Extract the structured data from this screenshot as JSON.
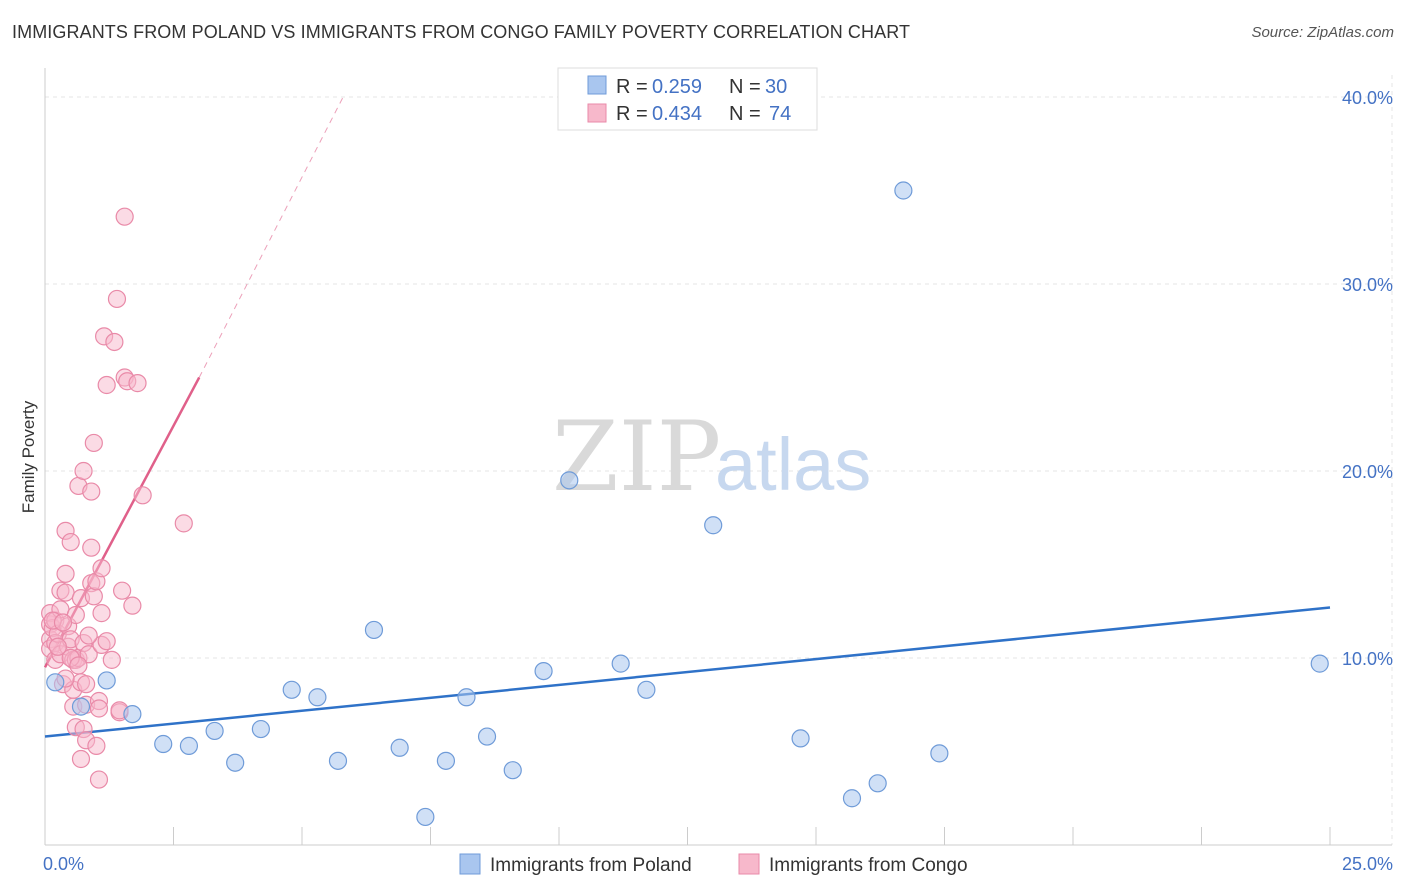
{
  "title": "IMMIGRANTS FROM POLAND VS IMMIGRANTS FROM CONGO FAMILY POVERTY CORRELATION CHART",
  "source": "Source: ZipAtlas.com",
  "watermark": {
    "zip": "ZIP",
    "atlas": "atlas"
  },
  "colors": {
    "poland_fill": "#a9c6ef",
    "poland_stroke": "#6f9bd8",
    "poland_line": "#2f72c8",
    "congo_fill": "#f7b8cb",
    "congo_stroke": "#e98aa8",
    "congo_line": "#e0608a",
    "grid": "#e4e4e4",
    "tick_text": "#4472c4"
  },
  "legend": {
    "rows": [
      {
        "r_label": "R =",
        "r_value": "0.259",
        "n_label": "N =",
        "n_value": "30"
      },
      {
        "r_label": "R =",
        "r_value": "0.434",
        "n_label": "N =",
        "n_value": "74"
      }
    ]
  },
  "chart_data": {
    "type": "scatter",
    "title": "IMMIGRANTS FROM POLAND VS IMMIGRANTS FROM CONGO FAMILY POVERTY CORRELATION CHART",
    "xlabel": "",
    "ylabel": "Family Poverty",
    "xlim": [
      0,
      25
    ],
    "ylim": [
      0,
      40
    ],
    "x_tick_labels": [
      "0.0%",
      "25.0%"
    ],
    "y_ticks": [
      10,
      20,
      30,
      40
    ],
    "y_tick_labels": [
      "10.0%",
      "20.0%",
      "30.0%",
      "40.0%"
    ],
    "grid": true,
    "series": [
      {
        "name": "Immigrants from Poland",
        "r": 0.259,
        "n": 30,
        "trend": {
          "x0": 0,
          "y0": 5.8,
          "x1": 25,
          "y1": 12.7
        },
        "points": [
          [
            0.2,
            8.7
          ],
          [
            1.2,
            8.8
          ],
          [
            0.7,
            7.4
          ],
          [
            1.7,
            7.0
          ],
          [
            2.3,
            5.4
          ],
          [
            2.8,
            5.3
          ],
          [
            3.3,
            6.1
          ],
          [
            3.7,
            4.4
          ],
          [
            4.2,
            6.2
          ],
          [
            4.8,
            8.3
          ],
          [
            5.3,
            7.9
          ],
          [
            5.7,
            4.5
          ],
          [
            6.4,
            11.5
          ],
          [
            6.9,
            5.2
          ],
          [
            7.4,
            1.5
          ],
          [
            7.8,
            4.5
          ],
          [
            8.2,
            7.9
          ],
          [
            8.6,
            5.8
          ],
          [
            9.1,
            4.0
          ],
          [
            9.7,
            9.3
          ],
          [
            10.2,
            19.5
          ],
          [
            11.2,
            9.7
          ],
          [
            11.7,
            8.3
          ],
          [
            13.0,
            17.1
          ],
          [
            14.7,
            5.7
          ],
          [
            15.7,
            2.5
          ],
          [
            16.2,
            3.3
          ],
          [
            16.7,
            35.0
          ],
          [
            17.4,
            4.9
          ],
          [
            24.8,
            9.7
          ]
        ]
      },
      {
        "name": "Immigrants from Congo",
        "r": 0.434,
        "n": 74,
        "trend": {
          "x0": 0,
          "y0": 9.5,
          "x1": 3.0,
          "y1": 25.0
        },
        "trend_extension": {
          "x0": 3.0,
          "y0": 25.0,
          "x1": 5.8,
          "y1": 40.0
        },
        "points": [
          [
            0.1,
            11.8
          ],
          [
            0.1,
            11.0
          ],
          [
            0.1,
            10.5
          ],
          [
            0.1,
            12.4
          ],
          [
            0.15,
            11.6
          ],
          [
            0.2,
            12.0
          ],
          [
            0.2,
            10.8
          ],
          [
            0.2,
            9.9
          ],
          [
            0.25,
            11.3
          ],
          [
            0.3,
            12.6
          ],
          [
            0.3,
            13.6
          ],
          [
            0.3,
            10.2
          ],
          [
            0.35,
            8.6
          ],
          [
            0.4,
            16.8
          ],
          [
            0.4,
            14.5
          ],
          [
            0.4,
            13.5
          ],
          [
            0.45,
            11.7
          ],
          [
            0.45,
            10.6
          ],
          [
            0.5,
            16.2
          ],
          [
            0.5,
            11.0
          ],
          [
            0.55,
            9.9
          ],
          [
            0.55,
            8.3
          ],
          [
            0.55,
            7.4
          ],
          [
            0.6,
            6.3
          ],
          [
            0.6,
            12.3
          ],
          [
            0.6,
            9.9
          ],
          [
            0.65,
            19.2
          ],
          [
            0.65,
            10.0
          ],
          [
            0.7,
            13.2
          ],
          [
            0.7,
            8.7
          ],
          [
            0.7,
            4.6
          ],
          [
            0.75,
            20.0
          ],
          [
            0.75,
            10.8
          ],
          [
            0.75,
            6.2
          ],
          [
            0.8,
            8.6
          ],
          [
            0.8,
            7.5
          ],
          [
            0.8,
            5.6
          ],
          [
            0.85,
            10.2
          ],
          [
            0.9,
            14.0
          ],
          [
            0.9,
            18.9
          ],
          [
            0.9,
            15.9
          ],
          [
            0.95,
            21.5
          ],
          [
            0.95,
            13.3
          ],
          [
            1.0,
            14.1
          ],
          [
            1.0,
            5.3
          ],
          [
            1.05,
            7.7
          ],
          [
            1.05,
            7.3
          ],
          [
            1.05,
            3.5
          ],
          [
            1.1,
            12.4
          ],
          [
            1.1,
            14.8
          ],
          [
            1.1,
            10.7
          ],
          [
            1.15,
            27.2
          ],
          [
            1.2,
            24.6
          ],
          [
            1.2,
            10.9
          ],
          [
            1.3,
            9.9
          ],
          [
            1.35,
            26.9
          ],
          [
            1.4,
            29.2
          ],
          [
            1.45,
            7.1
          ],
          [
            1.45,
            7.2
          ],
          [
            1.5,
            13.6
          ],
          [
            1.55,
            25.0
          ],
          [
            1.6,
            24.8
          ],
          [
            1.55,
            33.6
          ],
          [
            1.7,
            12.8
          ],
          [
            1.8,
            24.7
          ],
          [
            1.9,
            18.7
          ],
          [
            2.7,
            17.2
          ],
          [
            0.15,
            12.0
          ],
          [
            0.35,
            11.9
          ],
          [
            0.5,
            10.0
          ],
          [
            0.25,
            10.6
          ],
          [
            0.65,
            9.6
          ],
          [
            0.85,
            11.2
          ],
          [
            0.4,
            8.9
          ]
        ]
      }
    ]
  },
  "bottom_legend": {
    "items": [
      "Immigrants from Poland",
      "Immigrants from Congo"
    ]
  }
}
